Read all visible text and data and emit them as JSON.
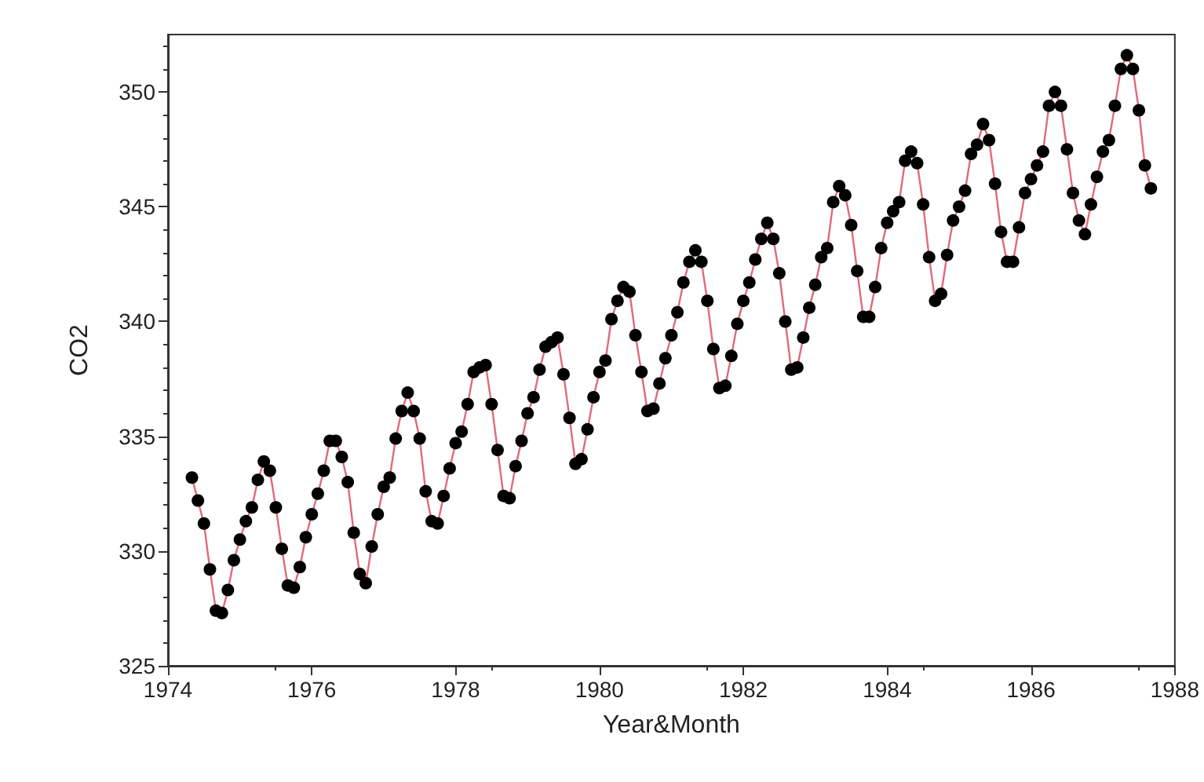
{
  "chart_data": {
    "type": "line",
    "xlabel": "Year&Month",
    "ylabel": "CO2",
    "xlim": [
      "1974",
      "1988"
    ],
    "xticks": [
      "1974",
      "1976",
      "1978",
      "1980",
      "1982",
      "1984",
      "1986",
      "1988"
    ],
    "ylim": [
      325,
      352.5
    ],
    "yticks": [
      325,
      330,
      335,
      340,
      345,
      350
    ],
    "grid": false,
    "marker": "circle",
    "line_style": "solid",
    "x": [
      "1974-05",
      "1974-06",
      "1974-07",
      "1974-08",
      "1974-09",
      "1974-10",
      "1974-11",
      "1974-12",
      "1975-01",
      "1975-02",
      "1975-03",
      "1975-04",
      "1975-05",
      "1975-06",
      "1975-07",
      "1975-08",
      "1975-09",
      "1975-10",
      "1975-11",
      "1975-12",
      "1976-01",
      "1976-02",
      "1976-03",
      "1976-04",
      "1976-05",
      "1976-06",
      "1976-07",
      "1976-08",
      "1976-09",
      "1976-10",
      "1976-11",
      "1976-12",
      "1977-01",
      "1977-02",
      "1977-03",
      "1977-04",
      "1977-05",
      "1977-06",
      "1977-07",
      "1977-08",
      "1977-09",
      "1977-10",
      "1977-11",
      "1977-12",
      "1978-01",
      "1978-02",
      "1978-03",
      "1978-04",
      "1978-05",
      "1978-06",
      "1978-07",
      "1978-08",
      "1978-09",
      "1978-10",
      "1978-11",
      "1978-12",
      "1979-01",
      "1979-02",
      "1979-03",
      "1979-04",
      "1979-05",
      "1979-06",
      "1979-07",
      "1979-08",
      "1979-09",
      "1979-10",
      "1979-11",
      "1979-12",
      "1980-01",
      "1980-02",
      "1980-03",
      "1980-04",
      "1980-05",
      "1980-06",
      "1980-07",
      "1980-08",
      "1980-09",
      "1980-10",
      "1980-11",
      "1980-12",
      "1981-01",
      "1981-02",
      "1981-03",
      "1981-04",
      "1981-05",
      "1981-06",
      "1981-07",
      "1981-08",
      "1981-09",
      "1981-10",
      "1981-11",
      "1981-12",
      "1982-01",
      "1982-02",
      "1982-03",
      "1982-04",
      "1982-05",
      "1982-06",
      "1982-07",
      "1982-08",
      "1982-09",
      "1982-10",
      "1982-11",
      "1982-12",
      "1983-01",
      "1983-02",
      "1983-03",
      "1983-04",
      "1983-05",
      "1983-06",
      "1983-07",
      "1983-08",
      "1983-09",
      "1983-10",
      "1983-11",
      "1983-12",
      "1984-01",
      "1984-02",
      "1984-03",
      "1984-04",
      "1984-05",
      "1984-06",
      "1984-07",
      "1984-08",
      "1984-09",
      "1984-10",
      "1984-11",
      "1984-12",
      "1985-01",
      "1985-02",
      "1985-03",
      "1985-04",
      "1985-05",
      "1985-06",
      "1985-07",
      "1985-08",
      "1985-09",
      "1985-10",
      "1985-11",
      "1985-12",
      "1986-01",
      "1986-02",
      "1986-03",
      "1986-04",
      "1986-05",
      "1986-06",
      "1986-07",
      "1986-08",
      "1986-09",
      "1986-10",
      "1986-11",
      "1986-12",
      "1987-01",
      "1987-02",
      "1987-03",
      "1987-04",
      "1987-05",
      "1987-06",
      "1987-07",
      "1987-08",
      "1987-09"
    ],
    "series": [
      {
        "marker": "none",
        "color": "#e06a7a",
        "values": [
          333.2,
          332.2,
          331.2,
          329.2,
          327.4,
          327.3,
          328.3,
          329.6,
          330.5,
          331.3,
          331.9,
          333.1,
          333.9,
          333.5,
          331.9,
          330.1,
          328.5,
          328.4,
          329.3,
          330.6,
          331.6,
          332.5,
          333.5,
          334.8,
          334.8,
          334.1,
          333.0,
          330.8,
          329.0,
          328.6,
          330.2,
          331.6,
          332.8,
          333.2,
          334.9,
          336.1,
          336.9,
          336.1,
          334.9,
          332.6,
          331.3,
          331.2,
          332.4,
          333.6,
          334.7,
          335.2,
          336.4,
          337.8,
          338.0,
          338.1,
          336.4,
          334.4,
          332.4,
          332.3,
          333.7,
          334.8,
          336.0,
          336.7,
          337.9,
          338.9,
          339.1,
          339.3,
          337.7,
          335.8,
          333.8,
          334.0,
          335.3,
          336.7,
          337.8,
          338.3,
          340.1,
          340.9,
          341.5,
          341.3,
          339.4,
          337.8,
          336.1,
          336.2,
          337.3,
          338.4,
          339.4,
          340.4,
          341.7,
          342.6,
          343.1,
          342.6,
          340.9,
          338.8,
          337.1,
          337.2,
          338.5,
          339.9,
          340.9,
          341.7,
          342.7,
          343.6,
          344.3,
          343.6,
          342.1,
          340.0,
          337.9,
          338.0,
          339.3,
          340.6,
          341.6,
          342.8,
          343.2,
          345.2,
          345.9,
          345.5,
          344.2,
          342.2,
          340.2,
          340.2,
          341.5,
          343.2,
          344.3,
          344.8,
          345.2,
          347.0,
          347.4,
          346.9,
          345.1,
          342.8,
          340.9,
          341.2,
          342.9,
          344.4,
          345.0,
          345.7,
          347.3,
          347.7,
          348.6,
          347.9,
          346.0,
          343.9,
          342.6,
          342.6,
          344.1,
          345.6,
          346.2,
          346.8,
          347.4,
          349.4,
          350.0,
          349.4,
          347.5,
          345.6,
          344.4,
          343.8,
          345.1,
          346.3,
          347.4,
          347.9,
          349.4,
          351.0,
          351.6,
          351.0,
          349.2,
          346.8,
          345.8
        ]
      },
      {
        "type": "scatter",
        "color": "#000000",
        "values": [
          333.2,
          332.2,
          331.2,
          329.2,
          327.4,
          327.3,
          328.3,
          329.6,
          330.5,
          331.3,
          331.9,
          333.1,
          333.9,
          333.5,
          331.9,
          330.1,
          328.5,
          328.4,
          329.3,
          330.6,
          331.6,
          332.5,
          333.5,
          334.8,
          334.8,
          334.1,
          333.0,
          330.8,
          329.0,
          328.6,
          330.2,
          331.6,
          332.8,
          333.2,
          334.9,
          336.1,
          336.9,
          336.1,
          334.9,
          332.6,
          331.3,
          331.2,
          332.4,
          333.6,
          334.7,
          335.2,
          336.4,
          337.8,
          338.0,
          338.1,
          336.4,
          334.4,
          332.4,
          332.3,
          333.7,
          334.8,
          336.0,
          336.7,
          337.9,
          338.9,
          339.1,
          339.3,
          337.7,
          335.8,
          333.8,
          334.0,
          335.3,
          336.7,
          337.8,
          338.3,
          340.1,
          340.9,
          341.5,
          341.3,
          339.4,
          337.8,
          336.1,
          336.2,
          337.3,
          338.4,
          339.4,
          340.4,
          341.7,
          342.6,
          343.1,
          342.6,
          340.9,
          338.8,
          337.1,
          337.2,
          338.5,
          339.9,
          340.9,
          341.7,
          342.7,
          343.6,
          344.3,
          343.6,
          342.1,
          340.0,
          337.9,
          338.0,
          339.3,
          340.6,
          341.6,
          342.8,
          343.2,
          345.2,
          345.9,
          345.5,
          344.2,
          342.2,
          340.2,
          340.2,
          341.5,
          343.2,
          344.3,
          344.8,
          345.2,
          347.0,
          347.4,
          346.9,
          345.1,
          342.8,
          340.9,
          341.2,
          342.9,
          344.4,
          345.0,
          345.7,
          347.3,
          347.7,
          348.6,
          347.9,
          346.0,
          343.9,
          342.6,
          342.6,
          344.1,
          345.6,
          346.2,
          346.8,
          347.4,
          349.4,
          350.0,
          349.4,
          347.5,
          345.6,
          344.4,
          343.8,
          345.1,
          346.3,
          347.4,
          347.9,
          349.4,
          351.0,
          351.6,
          351.0,
          349.2,
          346.8,
          345.8
        ]
      }
    ]
  }
}
